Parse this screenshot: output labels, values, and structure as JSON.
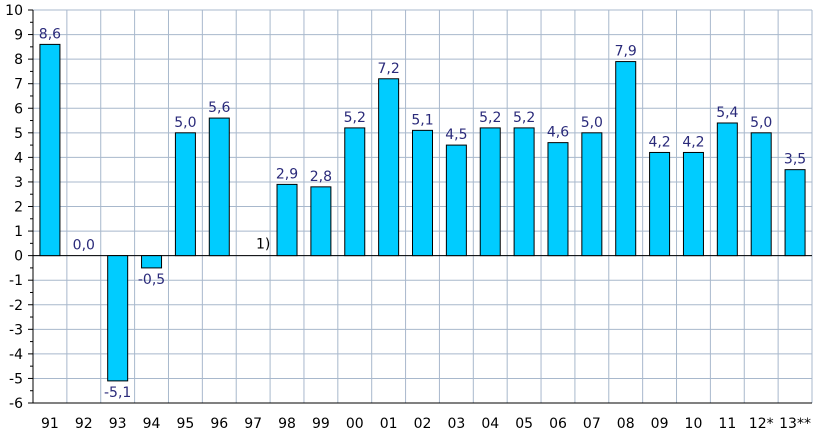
{
  "chart_data": {
    "type": "bar",
    "categories": [
      "91",
      "92",
      "93",
      "94",
      "95",
      "96",
      "97",
      "98",
      "99",
      "00",
      "01",
      "02",
      "03",
      "04",
      "05",
      "06",
      "07",
      "08",
      "09",
      "10",
      "11",
      "12*",
      "13**"
    ],
    "values": [
      8.6,
      0.0,
      -5.1,
      -0.5,
      5.0,
      5.6,
      null,
      2.9,
      2.8,
      5.2,
      7.2,
      5.1,
      4.5,
      5.2,
      5.2,
      4.6,
      5.0,
      7.9,
      4.2,
      4.2,
      5.4,
      5.0,
      3.5
    ],
    "data_labels": [
      "8,6",
      "0,0",
      "-5,1",
      "-0,5",
      "5,0",
      "5,6",
      "",
      "2,9",
      "2,8",
      "5,2",
      "7,2",
      "5,1",
      "4,5",
      "5,2",
      "5,2",
      "4,6",
      "5,0",
      "7,9",
      "4,2",
      "4,2",
      "5,4",
      "5,0",
      "3,5"
    ],
    "ylim": [
      -6,
      10
    ],
    "yticks": [
      "10",
      "9",
      "8",
      "7",
      "6",
      "5",
      "4",
      "3",
      "2",
      "1",
      "0",
      "-1",
      "-2",
      "-3",
      "-4",
      "-5",
      "-6"
    ],
    "annotations": [
      {
        "category": "97",
        "text": "1)"
      }
    ],
    "grid": true,
    "title": "",
    "xlabel": "",
    "ylabel": "",
    "colors": {
      "bar_fill": "#00ccff",
      "bar_stroke": "#000000",
      "grid": "#a8b8cc",
      "label_text": "#2a2a7a"
    }
  }
}
